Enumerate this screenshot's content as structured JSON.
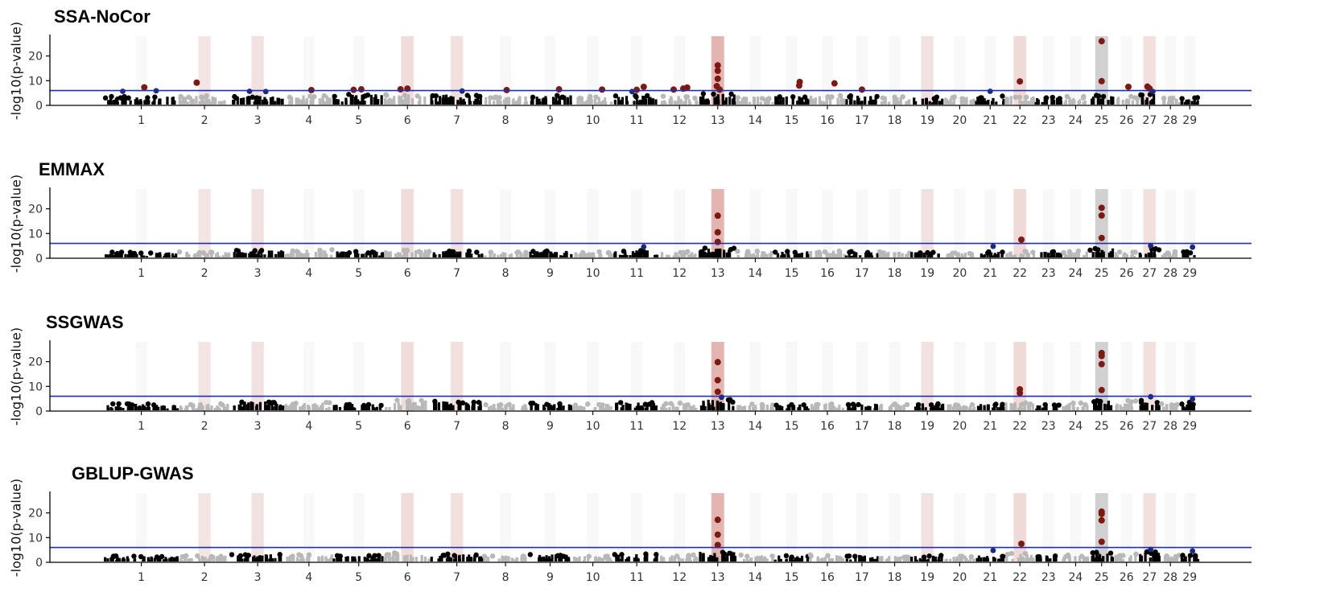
{
  "chart_data": [
    {
      "type": "scatter",
      "title": "SSA-NoCor",
      "ylabel": "-log10(p-value)",
      "xlabel": "",
      "ylim": [
        0,
        28
      ],
      "yticks": [
        0,
        10,
        20
      ],
      "threshold": 6,
      "threshold_color": "#1f2fb0",
      "baseline": [
        3.6,
        4.0,
        3.8,
        4.2,
        4.5,
        4.6,
        4.4,
        3.9,
        4.1,
        3.7,
        4.0,
        3.8,
        4.8,
        3.7,
        3.9,
        4.3,
        4.4,
        3.8,
        3.6,
        3.5,
        3.8,
        4.0,
        3.7,
        3.6,
        4.6,
        3.8,
        4.6,
        3.6,
        3.6
      ],
      "chromosome_highlights": [
        {
          "chr": 2,
          "level": 0.12
        },
        {
          "chr": 3,
          "level": 0.15
        },
        {
          "chr": 6,
          "level": 0.25
        },
        {
          "chr": 7,
          "level": 0.2
        },
        {
          "chr": 13,
          "level": 0.9
        },
        {
          "chr": 19,
          "level": 0.15
        },
        {
          "chr": 22,
          "level": 0.3
        },
        {
          "chr": 25,
          "level": 0.0,
          "gray": true
        },
        {
          "chr": 27,
          "level": 0.2
        }
      ],
      "significant": [
        {
          "chr": 1,
          "pos": 0.08,
          "y": 7.3
        },
        {
          "chr": 2,
          "pos": -0.3,
          "y": 9.2
        },
        {
          "chr": 4,
          "pos": 0.1,
          "y": 6.2
        },
        {
          "chr": 5,
          "pos": -0.2,
          "y": 6.3
        },
        {
          "chr": 5,
          "pos": 0.1,
          "y": 6.5
        },
        {
          "chr": 6,
          "pos": -0.3,
          "y": 6.5
        },
        {
          "chr": 6,
          "pos": 0.0,
          "y": 6.8
        },
        {
          "chr": 8,
          "pos": 0.05,
          "y": 6.2
        },
        {
          "chr": 9,
          "pos": 0.4,
          "y": 6.5
        },
        {
          "chr": 10,
          "pos": 0.45,
          "y": 6.4
        },
        {
          "chr": 11,
          "pos": 0.0,
          "y": 6.3
        },
        {
          "chr": 11,
          "pos": 0.3,
          "y": 7.5
        },
        {
          "chr": 12,
          "pos": -0.3,
          "y": 6.4
        },
        {
          "chr": 12,
          "pos": 0.2,
          "y": 6.8
        },
        {
          "chr": 12,
          "pos": 0.4,
          "y": 7.2
        },
        {
          "chr": 13,
          "pos": 0.0,
          "y": 16.2
        },
        {
          "chr": 13,
          "pos": 0.0,
          "y": 14.0
        },
        {
          "chr": 13,
          "pos": 0.0,
          "y": 10.8
        },
        {
          "chr": 13,
          "pos": -0.05,
          "y": 7.8
        },
        {
          "chr": 13,
          "pos": 0.1,
          "y": 6.4
        },
        {
          "chr": 15,
          "pos": 0.45,
          "y": 9.5
        },
        {
          "chr": 15,
          "pos": 0.42,
          "y": 8.0
        },
        {
          "chr": 16,
          "pos": 0.4,
          "y": 8.9
        },
        {
          "chr": 17,
          "pos": 0.0,
          "y": 6.4
        },
        {
          "chr": 22,
          "pos": 0.0,
          "y": 9.7
        },
        {
          "chr": 25,
          "pos": 0.0,
          "y": 26.0
        },
        {
          "chr": 25,
          "pos": 0.0,
          "y": 9.8
        },
        {
          "chr": 26,
          "pos": 0.15,
          "y": 7.5
        },
        {
          "chr": 27,
          "pos": -0.2,
          "y": 7.6
        },
        {
          "chr": 27,
          "pos": 0.0,
          "y": 6.8
        }
      ],
      "near_threshold": [
        {
          "chr": 1,
          "pos": -0.5,
          "y": 5.7
        },
        {
          "chr": 1,
          "pos": 0.4,
          "y": 5.9
        },
        {
          "chr": 3,
          "pos": -0.3,
          "y": 5.7
        },
        {
          "chr": 3,
          "pos": 0.3,
          "y": 5.6
        },
        {
          "chr": 7,
          "pos": 0.2,
          "y": 5.8
        },
        {
          "chr": 11,
          "pos": -0.2,
          "y": 5.6
        },
        {
          "chr": 21,
          "pos": 0.0,
          "y": 5.7
        },
        {
          "chr": 27,
          "pos": 0.3,
          "y": 5.6
        }
      ]
    },
    {
      "type": "scatter",
      "title": "EMMAX",
      "ylabel": "-log10(p-value)",
      "xlabel": "",
      "ylim": [
        0,
        28
      ],
      "yticks": [
        0,
        10,
        20
      ],
      "threshold": 6,
      "threshold_color": "#1f2fb0",
      "baseline": [
        2.5,
        2.8,
        3.2,
        3.5,
        2.8,
        3.5,
        3.0,
        2.8,
        3.0,
        2.6,
        3.2,
        2.8,
        4.2,
        3.0,
        2.8,
        3.2,
        2.8,
        2.7,
        2.6,
        2.5,
        2.6,
        3.0,
        2.7,
        3.0,
        4.0,
        2.8,
        4.0,
        2.7,
        2.8
      ],
      "chromosome_highlights": [
        {
          "chr": 2,
          "level": 0.12
        },
        {
          "chr": 3,
          "level": 0.15
        },
        {
          "chr": 6,
          "level": 0.25
        },
        {
          "chr": 7,
          "level": 0.2
        },
        {
          "chr": 13,
          "level": 0.9
        },
        {
          "chr": 19,
          "level": 0.15
        },
        {
          "chr": 22,
          "level": 0.3
        },
        {
          "chr": 25,
          "level": 0.0,
          "gray": true
        },
        {
          "chr": 27,
          "level": 0.2
        }
      ],
      "significant": [
        {
          "chr": 13,
          "pos": 0.0,
          "y": 17.2
        },
        {
          "chr": 13,
          "pos": 0.0,
          "y": 10.5
        },
        {
          "chr": 13,
          "pos": 0.0,
          "y": 6.6
        },
        {
          "chr": 22,
          "pos": 0.1,
          "y": 7.5
        },
        {
          "chr": 25,
          "pos": 0.0,
          "y": 20.4
        },
        {
          "chr": 25,
          "pos": 0.0,
          "y": 17.3
        },
        {
          "chr": 25,
          "pos": 0.0,
          "y": 8.2
        }
      ],
      "near_threshold": [
        {
          "chr": 11,
          "pos": 0.3,
          "y": 4.6
        },
        {
          "chr": 21,
          "pos": 0.2,
          "y": 4.8
        },
        {
          "chr": 27,
          "pos": 0.1,
          "y": 5.0
        },
        {
          "chr": 29,
          "pos": 0.3,
          "y": 4.5
        }
      ]
    },
    {
      "type": "scatter",
      "title": "SSGWAS",
      "ylabel": "-log10(p-value)",
      "xlabel": "",
      "ylim": [
        0,
        28
      ],
      "yticks": [
        0,
        10,
        20
      ],
      "threshold": 6,
      "threshold_color": "#1f2fb0",
      "baseline": [
        3.0,
        3.0,
        4.0,
        3.5,
        3.0,
        4.5,
        4.2,
        3.0,
        3.5,
        3.0,
        3.5,
        3.4,
        4.8,
        3.2,
        3.0,
        3.4,
        3.1,
        3.0,
        3.2,
        3.0,
        3.0,
        3.6,
        3.0,
        3.4,
        4.6,
        4.4,
        4.5,
        3.2,
        3.6
      ],
      "chromosome_highlights": [
        {
          "chr": 2,
          "level": 0.12
        },
        {
          "chr": 3,
          "level": 0.15
        },
        {
          "chr": 6,
          "level": 0.25
        },
        {
          "chr": 7,
          "level": 0.2
        },
        {
          "chr": 13,
          "level": 0.9
        },
        {
          "chr": 19,
          "level": 0.15
        },
        {
          "chr": 22,
          "level": 0.3
        },
        {
          "chr": 25,
          "level": 0.0,
          "gray": true
        },
        {
          "chr": 27,
          "level": 0.2
        }
      ],
      "significant": [
        {
          "chr": 13,
          "pos": 0.0,
          "y": 19.8
        },
        {
          "chr": 13,
          "pos": 0.0,
          "y": 12.5
        },
        {
          "chr": 13,
          "pos": 0.0,
          "y": 7.8
        },
        {
          "chr": 22,
          "pos": 0.0,
          "y": 8.8
        },
        {
          "chr": 22,
          "pos": 0.0,
          "y": 7.3
        },
        {
          "chr": 25,
          "pos": 0.0,
          "y": 23.5
        },
        {
          "chr": 25,
          "pos": 0.0,
          "y": 22.3
        },
        {
          "chr": 25,
          "pos": 0.0,
          "y": 19.0
        },
        {
          "chr": 25,
          "pos": 0.0,
          "y": 8.5
        }
      ],
      "near_threshold": [
        {
          "chr": 13,
          "pos": 0.2,
          "y": 5.6
        },
        {
          "chr": 27,
          "pos": 0.1,
          "y": 5.8
        },
        {
          "chr": 29,
          "pos": 0.3,
          "y": 4.9
        }
      ]
    },
    {
      "type": "scatter",
      "title": "GBLUP-GWAS",
      "ylabel": "-log10(p-value)",
      "xlabel": "",
      "ylim": [
        0,
        28
      ],
      "yticks": [
        0,
        10,
        20
      ],
      "threshold": 6,
      "threshold_color": "#1f2fb0",
      "baseline": [
        2.6,
        2.8,
        3.4,
        3.2,
        2.8,
        3.8,
        3.4,
        2.8,
        3.2,
        2.6,
        3.4,
        3.0,
        4.4,
        3.0,
        2.8,
        3.2,
        3.0,
        2.6,
        2.8,
        2.6,
        2.8,
        3.6,
        2.8,
        3.2,
        4.2,
        3.4,
        4.4,
        3.0,
        3.4
      ],
      "chromosome_highlights": [
        {
          "chr": 2,
          "level": 0.12
        },
        {
          "chr": 3,
          "level": 0.15
        },
        {
          "chr": 6,
          "level": 0.25
        },
        {
          "chr": 7,
          "level": 0.2
        },
        {
          "chr": 13,
          "level": 0.9
        },
        {
          "chr": 19,
          "level": 0.15
        },
        {
          "chr": 22,
          "level": 0.3
        },
        {
          "chr": 25,
          "level": 0.0,
          "gray": true
        },
        {
          "chr": 27,
          "level": 0.2
        }
      ],
      "significant": [
        {
          "chr": 13,
          "pos": 0.0,
          "y": 17.2
        },
        {
          "chr": 13,
          "pos": 0.0,
          "y": 11.2
        },
        {
          "chr": 13,
          "pos": 0.0,
          "y": 7.0
        },
        {
          "chr": 22,
          "pos": 0.1,
          "y": 7.5
        },
        {
          "chr": 25,
          "pos": 0.0,
          "y": 20.5
        },
        {
          "chr": 25,
          "pos": 0.0,
          "y": 19.6
        },
        {
          "chr": 25,
          "pos": 0.0,
          "y": 17.0
        },
        {
          "chr": 25,
          "pos": 0.0,
          "y": 8.3
        }
      ],
      "near_threshold": [
        {
          "chr": 21,
          "pos": 0.2,
          "y": 4.8
        },
        {
          "chr": 27,
          "pos": 0.1,
          "y": 5.2
        },
        {
          "chr": 29,
          "pos": 0.3,
          "y": 4.6
        }
      ]
    }
  ],
  "x_ticks": [
    "1",
    "2",
    "3",
    "4",
    "5",
    "6",
    "7",
    "8",
    "9",
    "10",
    "11",
    "12",
    "13",
    "14",
    "15",
    "16",
    "17",
    "18",
    "19",
    "20",
    "21",
    "22",
    "23",
    "24",
    "25",
    "26",
    "27",
    "28",
    "29"
  ],
  "colors": {
    "odd_chr": "#000000",
    "even_chr": "#b8b8b8",
    "significant": "#7b1a12",
    "near": "#1b2a7a",
    "threshold": "#1f2fb0",
    "highlight": "#c0392b",
    "highlight_gray": "#cccccc"
  }
}
